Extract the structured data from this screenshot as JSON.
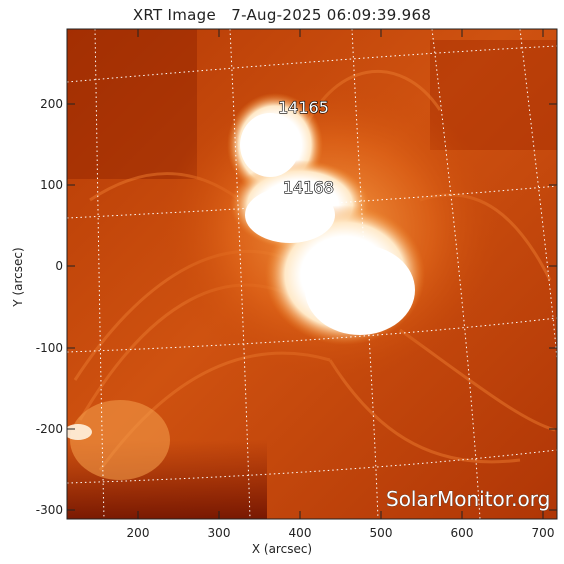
{
  "title": "XRT Image   7-Aug-2025 06:09:39.968",
  "xlabel": "X (arcsec)",
  "ylabel": "Y (arcsec)",
  "x_ticks": [
    "200",
    "300",
    "400",
    "500",
    "600",
    "700"
  ],
  "y_ticks": [
    "200",
    "100",
    "0",
    "-100",
    "-200",
    "-300"
  ],
  "regions": [
    {
      "label": "14165"
    },
    {
      "label": "14168"
    }
  ],
  "watermark": "SolarMonitor.org",
  "colors": {
    "background_dark": "#8a1c00",
    "background_mid": "#c84a08",
    "bright": "#ffffff",
    "grid": "#ffffff"
  }
}
